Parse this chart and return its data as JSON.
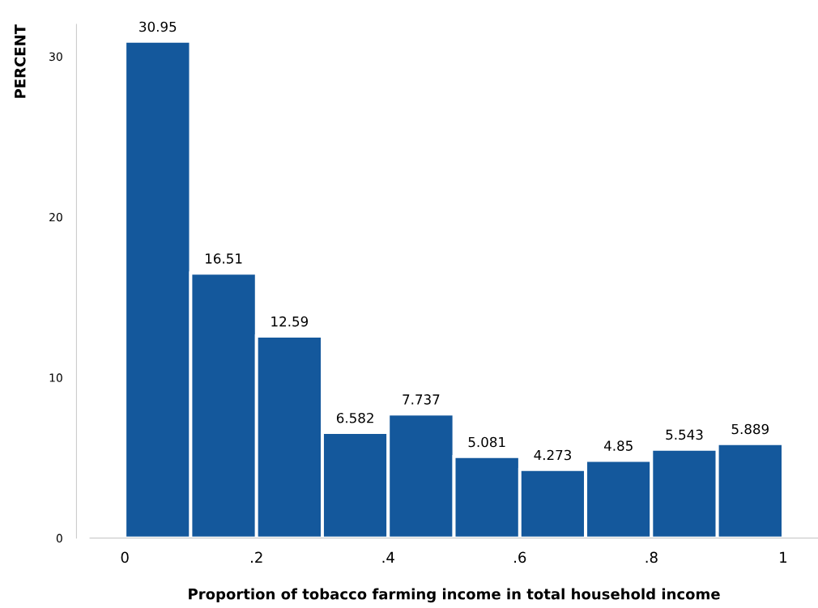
{
  "chart_data": {
    "type": "histogram",
    "xlabel": "Proportion of tobacco farming income in total household income",
    "ylabel": "PERCENT",
    "bins": [
      0,
      0.1,
      0.2,
      0.3,
      0.4,
      0.5,
      0.6,
      0.7,
      0.8,
      0.9,
      1.0
    ],
    "values": [
      30.95,
      16.51,
      12.59,
      6.582,
      7.737,
      5.081,
      4.273,
      4.85,
      5.543,
      5.889
    ],
    "color": "#14589c",
    "data_labels": true,
    "xlim": [
      -0.053,
      1.053
    ],
    "ylim": [
      0,
      32
    ],
    "xticks": [
      0,
      {
        "value": 0.2,
        "label": ".2"
      },
      {
        "value": 0.4,
        "label": ".4"
      },
      {
        "value": 0.6,
        "label": ".6"
      },
      {
        "value": 0.8,
        "label": ".8"
      },
      1
    ],
    "yticks": [
      0,
      10,
      20,
      30
    ],
    "grid": false,
    "legend": false
  }
}
